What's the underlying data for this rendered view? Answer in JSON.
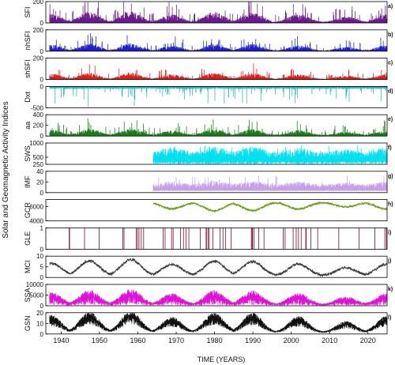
{
  "chart_data": {
    "type": "line",
    "ylabel": "Solar and Geomagnetic Activity Indices",
    "xlabel": "TIME (YEARS)",
    "xlim": [
      1936,
      2025
    ],
    "xticks": [
      "1940",
      "1950",
      "1960",
      "1970",
      "1980",
      "1990",
      "2000",
      "2010",
      "2020"
    ],
    "panels": [
      {
        "id": "a",
        "panel_label": "a)",
        "name": "SFI",
        "color": "#6a1b8a",
        "ylim": [
          0,
          200
        ],
        "yticks": [
          "0",
          "200"
        ],
        "style": "spikes",
        "start": 1937,
        "baseline": 5,
        "peak": 125,
        "amp": 0.95
      },
      {
        "id": "b",
        "panel_label": "b)",
        "name": "nhSFI",
        "color": "#1f1fcc",
        "ylim": [
          0,
          200
        ],
        "yticks": [
          "0",
          "200"
        ],
        "style": "spikes",
        "start": 1937,
        "baseline": 3,
        "peak": 85,
        "amp": 1.0
      },
      {
        "id": "c",
        "panel_label": "c)",
        "name": "shSFI",
        "color": "#e01b1b",
        "ylim": [
          0,
          200
        ],
        "yticks": [
          "0",
          "200"
        ],
        "style": "spikes",
        "start": 1937,
        "baseline": 3,
        "peak": 75,
        "amp": 1.0
      },
      {
        "id": "d",
        "panel_label": "d)",
        "name": "Dxt",
        "color": "#2ab3b3",
        "ylim": [
          -500,
          0
        ],
        "yticks": [
          "-500",
          "0"
        ],
        "style": "down",
        "start": 1937,
        "baseline": -40,
        "peak": -160,
        "amp": 1.0
      },
      {
        "id": "e",
        "panel_label": "e)",
        "name": "aa",
        "color": "#1a7a1a",
        "ylim": [
          0,
          400
        ],
        "yticks": [
          "0",
          "200",
          "400"
        ],
        "style": "spikes",
        "start": 1937,
        "baseline": 15,
        "peak": 150,
        "amp": 1.2
      },
      {
        "id": "f",
        "panel_label": "f)",
        "name": "SWS",
        "color": "#00e0ee",
        "ylim": [
          250,
          1000
        ],
        "yticks": [
          "250",
          "500",
          "1000"
        ],
        "style": "band",
        "start": 1964,
        "baseline": 350,
        "peak": 700,
        "amp": 0.5
      },
      {
        "id": "g",
        "panel_label": "g)",
        "name": "IMF",
        "color": "#c7a1e8",
        "ylim": [
          0,
          40
        ],
        "yticks": [
          "0",
          "20",
          "40"
        ],
        "style": "band",
        "start": 1964,
        "baseline": 4,
        "peak": 16,
        "amp": 0.6
      },
      {
        "id": "h",
        "panel_label": "h)",
        "name": "GCR",
        "color": "#6b9a1a",
        "ylim": [
          4000,
          7000
        ],
        "yticks": [
          "4000",
          "6000"
        ],
        "style": "gcr",
        "start": 1964,
        "baseline": 6200,
        "peak": 6200,
        "amp": 0.0
      },
      {
        "id": "i",
        "panel_label": "i)",
        "name": "GLE",
        "color": "#7a0f2a",
        "ylim": [
          0,
          1
        ],
        "yticks": [
          "0",
          "1"
        ],
        "style": "events",
        "start": 1942,
        "baseline": 0,
        "peak": 1,
        "amp": 0.0,
        "events": [
          1942.1,
          1942.2,
          1946.1,
          1949.9,
          1956.1,
          1956.4,
          1959.6,
          1959.9,
          1960.3,
          1960.9,
          1961.5,
          1966.6,
          1967.1,
          1968.8,
          1969.2,
          1971.1,
          1971.9,
          1972.6,
          1973.3,
          1976.3,
          1977.8,
          1977.9,
          1978.3,
          1978.6,
          1979.6,
          1981.4,
          1982.2,
          1982.9,
          1984.3,
          1989.6,
          1989.8,
          1989.9,
          1990.3,
          1991.5,
          1992.9,
          1997.9,
          1998.4,
          2000.5,
          2001.3,
          2001.9,
          2002.6,
          2003.8,
          2003.9,
          2005.1,
          2006.9,
          2012.4,
          2017.7,
          2021.8,
          2024.4,
          2024.8
        ]
      },
      {
        "id": "j",
        "panel_label": "j)",
        "name": "MCI",
        "color": "#3a3a3a",
        "ylim": [
          0,
          10
        ],
        "yticks": [
          "0",
          "5",
          "10"
        ],
        "style": "cycle",
        "start": 1937,
        "baseline": 0.8,
        "peak": 7.6,
        "amp": 0.15
      },
      {
        "id": "k",
        "panel_label": "k)",
        "name": "SSA",
        "color": "#e010d8",
        "ylim": [
          0,
          10000
        ],
        "yticks": [
          "0",
          "5000",
          "10000"
        ],
        "style": "cycle-noisy",
        "start": 1937,
        "baseline": 500,
        "peak": 4200,
        "amp": 0.9
      },
      {
        "id": "l",
        "panel_label": "l)",
        "name": "GSN",
        "color": "#111111",
        "ylim": [
          0,
          20
        ],
        "yticks": [
          "0",
          "10",
          "20"
        ],
        "style": "cycle-noisy",
        "start": 1937,
        "baseline": 1.5,
        "peak": 15,
        "amp": 0.45
      }
    ],
    "cycle_peaks": [
      1937.4,
      1947.4,
      1958.2,
      1968.9,
      1979.9,
      1989.9,
      2001.9,
      2014.3,
      2024.8
    ],
    "cycle_peak_scale": [
      0.78,
      0.92,
      1.0,
      0.7,
      0.9,
      0.88,
      0.72,
      0.5,
      0.72
    ]
  }
}
